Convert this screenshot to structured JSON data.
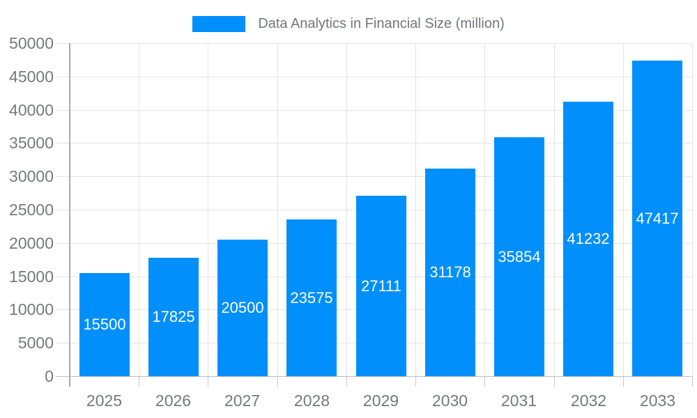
{
  "chart_data": {
    "type": "bar",
    "title": "Data Analytics in Financial Size (million)",
    "categories": [
      "2025",
      "2026",
      "2027",
      "2028",
      "2029",
      "2030",
      "2031",
      "2032",
      "2033"
    ],
    "series": [
      {
        "name": "Data Analytics in Financial Size (million)",
        "values": [
          15500,
          17825,
          20500,
          23575,
          27111,
          31178,
          35854,
          41232,
          47417
        ]
      }
    ],
    "values": [
      15500,
      17825,
      20500,
      23575,
      27111,
      31178,
      35854,
      41232,
      47417
    ],
    "data_labels": [
      "15500",
      "17825",
      "20500",
      "23575",
      "27111",
      "31178",
      "35854",
      "41232",
      "47417"
    ],
    "xlabel": "",
    "ylabel": "",
    "ylim": [
      0,
      50000
    ],
    "y_tick_step": 5000,
    "y_ticks": [
      0,
      5000,
      10000,
      15000,
      20000,
      25000,
      30000,
      35000,
      40000,
      45000,
      50000
    ],
    "grid": true,
    "legend_position": "top-center",
    "legend_marker": "rectangle"
  },
  "colors": {
    "bar": "#008FFB",
    "bar_value_label": "#ffffff",
    "grid_line": "#e3e3e3",
    "zero_line": "#bdbdbd",
    "y_axis_line": "#a9a9a9",
    "tick": "#c5c5c5",
    "axis_text": "#76787d",
    "legend_text": "#72757e",
    "background": "#ffffff"
  }
}
